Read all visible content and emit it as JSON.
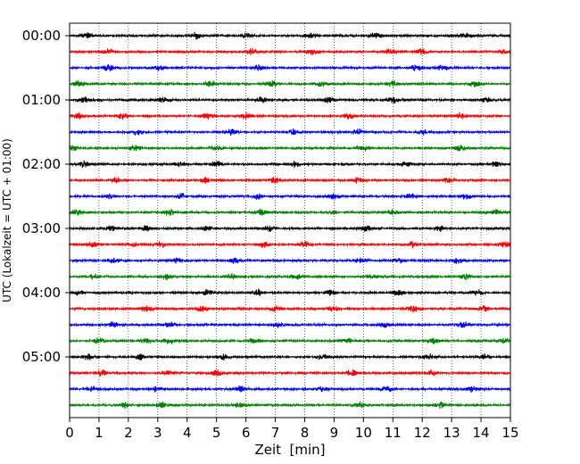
{
  "chart_data": {
    "type": "line",
    "title": "",
    "xlabel": "Zeit  [min]",
    "ylabel": "UTC (Lokalzeit = UTC + 01:00)",
    "xlim": [
      0,
      15
    ],
    "x_ticks": [
      0,
      1,
      2,
      3,
      4,
      5,
      6,
      7,
      8,
      9,
      10,
      11,
      12,
      13,
      14,
      15
    ],
    "x_tick_labels": [
      "0",
      "1",
      "2",
      "3",
      "4",
      "5",
      "6",
      "7",
      "8",
      "9",
      "10",
      "11",
      "12",
      "13",
      "14",
      "15"
    ],
    "y_tick_labels": [
      "00:00",
      "01:00",
      "02:00",
      "03:00",
      "04:00",
      "05:00"
    ],
    "y_tick_rows": [
      0,
      4,
      8,
      12,
      16,
      20
    ],
    "row_count": 24,
    "row_interval_minutes": 15,
    "row_colors": [
      "#000000",
      "#ff0000",
      "#0000ff",
      "#008000"
    ],
    "grid": "vertical dotted at each minute",
    "trace_bursts": [
      [
        0.6,
        4.3,
        6.0,
        8.2,
        10.4,
        13.5
      ],
      [
        1.3,
        6.2,
        8.3,
        10.9,
        12.0,
        14.8
      ],
      [
        1.3,
        3.0,
        6.4,
        11.8,
        12.7
      ],
      [
        0.3,
        4.8,
        6.9,
        8.5,
        11.0,
        13.8
      ],
      [
        0.5,
        3.2,
        6.5,
        8.8,
        11.0,
        14.2
      ],
      [
        0.3,
        1.8,
        4.7,
        6.0,
        9.5,
        13.3
      ],
      [
        2.3,
        5.5,
        7.6,
        9.8,
        12.0
      ],
      [
        0.1,
        2.2,
        5.0,
        10.0,
        13.3
      ],
      [
        0.5,
        3.7,
        5.0,
        7.7,
        11.4,
        14.5
      ],
      [
        1.6,
        4.6,
        7.0,
        9.8,
        12.9
      ],
      [
        1.4,
        3.8,
        6.4,
        9.0,
        11.6,
        13.5
      ],
      [
        0.2,
        3.4,
        6.5,
        8.9,
        11.0,
        14.5
      ],
      [
        1.4,
        2.6,
        4.7,
        6.8,
        10.1,
        12.6
      ],
      [
        0.8,
        2.2,
        3.1,
        6.6,
        8.0,
        11.7,
        14.8
      ],
      [
        1.5,
        3.7,
        5.6,
        9.9,
        11.2,
        13.2
      ],
      [
        0.8,
        3.3,
        5.5,
        7.7,
        10.3,
        13.5
      ],
      [
        0.3,
        4.7,
        6.4,
        8.9,
        11.2,
        13.9
      ],
      [
        2.6,
        4.5,
        7.0,
        9.0,
        11.7,
        14.1
      ],
      [
        1.5,
        3.4,
        7.1,
        10.7,
        13.4
      ],
      [
        1.0,
        2.6,
        3.4,
        6.3,
        9.4,
        12.4,
        14.8
      ],
      [
        0.6,
        2.4,
        5.2,
        8.6,
        12.2,
        14.1
      ],
      [
        1.1,
        3.3,
        5.0,
        9.6,
        12.3
      ],
      [
        0.8,
        2.9,
        5.8,
        8.6,
        10.8,
        13.7
      ],
      [
        1.9,
        3.1,
        5.8,
        9.9,
        12.6
      ]
    ]
  }
}
